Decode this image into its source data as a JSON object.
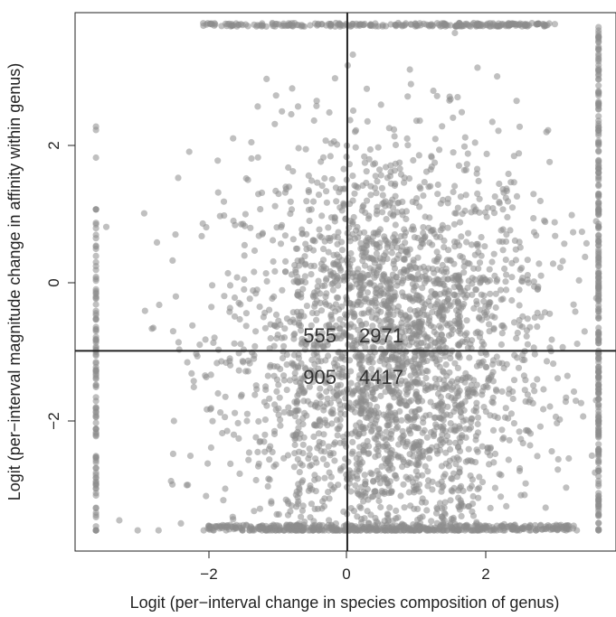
{
  "chart_data": {
    "type": "scatter",
    "title": "",
    "xlabel": "Logit (per−interval change in species composition of genus)",
    "ylabel": "Logit (per−interval magnitude change in affinity within genus)",
    "xlim": [
      -3.9,
      3.85
    ],
    "ylim": [
      -3.95,
      3.85
    ],
    "x_ticks": [
      -2,
      0,
      2
    ],
    "x_tick_labels": [
      "−2",
      "0",
      "2"
    ],
    "y_ticks": [
      -2,
      0,
      2
    ],
    "y_tick_labels": [
      "−2",
      "0",
      "2"
    ],
    "reference_lines": {
      "vertical_x": 0,
      "horizontal_y": -1.05
    },
    "quadrant_counts": {
      "upper_left": "555",
      "upper_right": "2971",
      "lower_left": "905",
      "lower_right": "4417"
    },
    "point_color": "#8c8c8c",
    "x_clip_bounds": [
      -3.6,
      3.6
    ],
    "y_clip_bounds": [
      -3.65,
      3.65
    ],
    "grid": false,
    "legend": "none"
  }
}
